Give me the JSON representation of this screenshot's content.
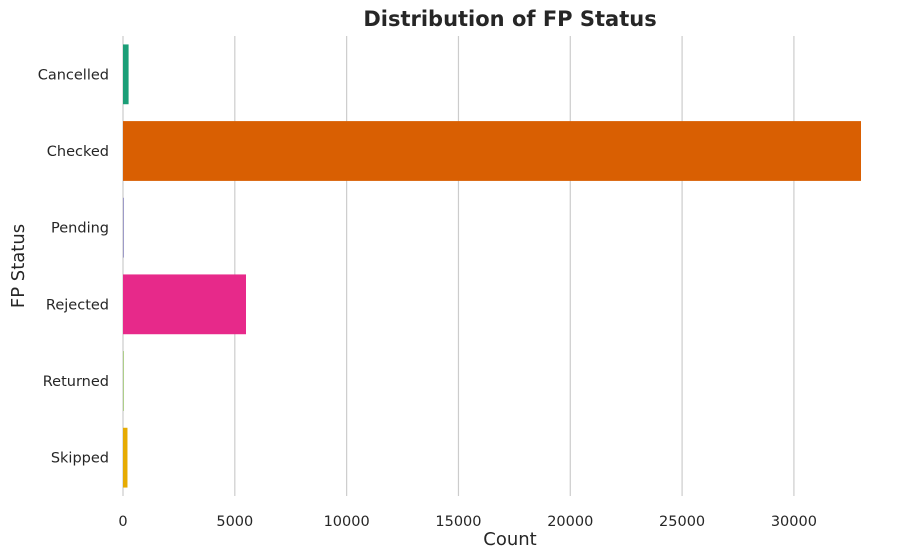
{
  "chart_data": {
    "type": "bar",
    "orientation": "horizontal",
    "title": "Distribution of FP Status",
    "xlabel": "Count",
    "ylabel": "FP Status",
    "categories": [
      "Cancelled",
      "Checked",
      "Pending",
      "Rejected",
      "Returned",
      "Skipped"
    ],
    "values": [
      250,
      33000,
      30,
      5500,
      20,
      200
    ],
    "colors": [
      "#1b9e77",
      "#d95f02",
      "#7570b3",
      "#e7298a",
      "#66a61e",
      "#e6ab02"
    ],
    "xlim": [
      0,
      33000
    ],
    "xticks": [
      0,
      5000,
      10000,
      15000,
      20000,
      25000,
      30000
    ],
    "grid": "vertical",
    "legend": "none"
  }
}
